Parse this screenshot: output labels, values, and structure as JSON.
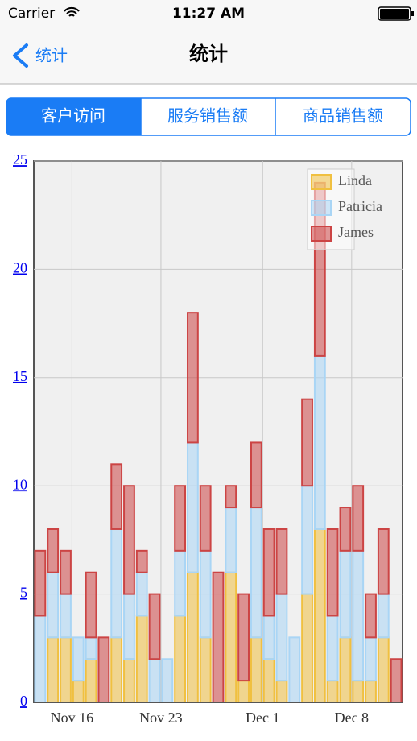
{
  "status": {
    "carrier": "Carrier",
    "time": "11:27 AM"
  },
  "nav": {
    "back": "统计",
    "title": "统计"
  },
  "tabs": [
    "客户访问",
    "服务销售额",
    "商品销售额"
  ],
  "chart_data": {
    "type": "bar",
    "stacked": true,
    "categories": [
      null,
      null,
      null,
      "Nov 16",
      null,
      null,
      null,
      null,
      null,
      null,
      "Nov 23",
      null,
      null,
      null,
      null,
      null,
      null,
      null,
      "Dec 1",
      null,
      null,
      null,
      null,
      null,
      null,
      "Dec 8",
      null,
      null,
      null
    ],
    "series": [
      {
        "name": "Linda",
        "color": "#f0c040",
        "values": [
          0,
          3,
          3,
          1,
          2,
          0,
          3,
          2,
          4,
          0,
          0,
          4,
          6,
          3,
          0,
          6,
          1,
          3,
          2,
          1,
          0,
          5,
          8,
          1,
          3,
          1,
          1,
          3,
          0
        ]
      },
      {
        "name": "Patricia",
        "color": "#a9d5f5",
        "values": [
          4,
          3,
          2,
          2,
          1,
          0,
          5,
          3,
          2,
          2,
          2,
          3,
          6,
          4,
          0,
          3,
          0,
          6,
          2,
          4,
          3,
          5,
          8,
          3,
          4,
          6,
          2,
          2,
          0
        ]
      },
      {
        "name": "James",
        "color": "#cc4444",
        "values": [
          3,
          2,
          2,
          0,
          3,
          3,
          3,
          5,
          1,
          3,
          0,
          3,
          6,
          3,
          6,
          1,
          4,
          3,
          4,
          3,
          0,
          4,
          8,
          4,
          2,
          3,
          2,
          3,
          2
        ]
      }
    ],
    "ylim": [
      0,
      25
    ],
    "yticks": [
      0,
      5,
      10,
      15,
      20,
      25
    ],
    "grid": true,
    "legend": "top-right"
  }
}
